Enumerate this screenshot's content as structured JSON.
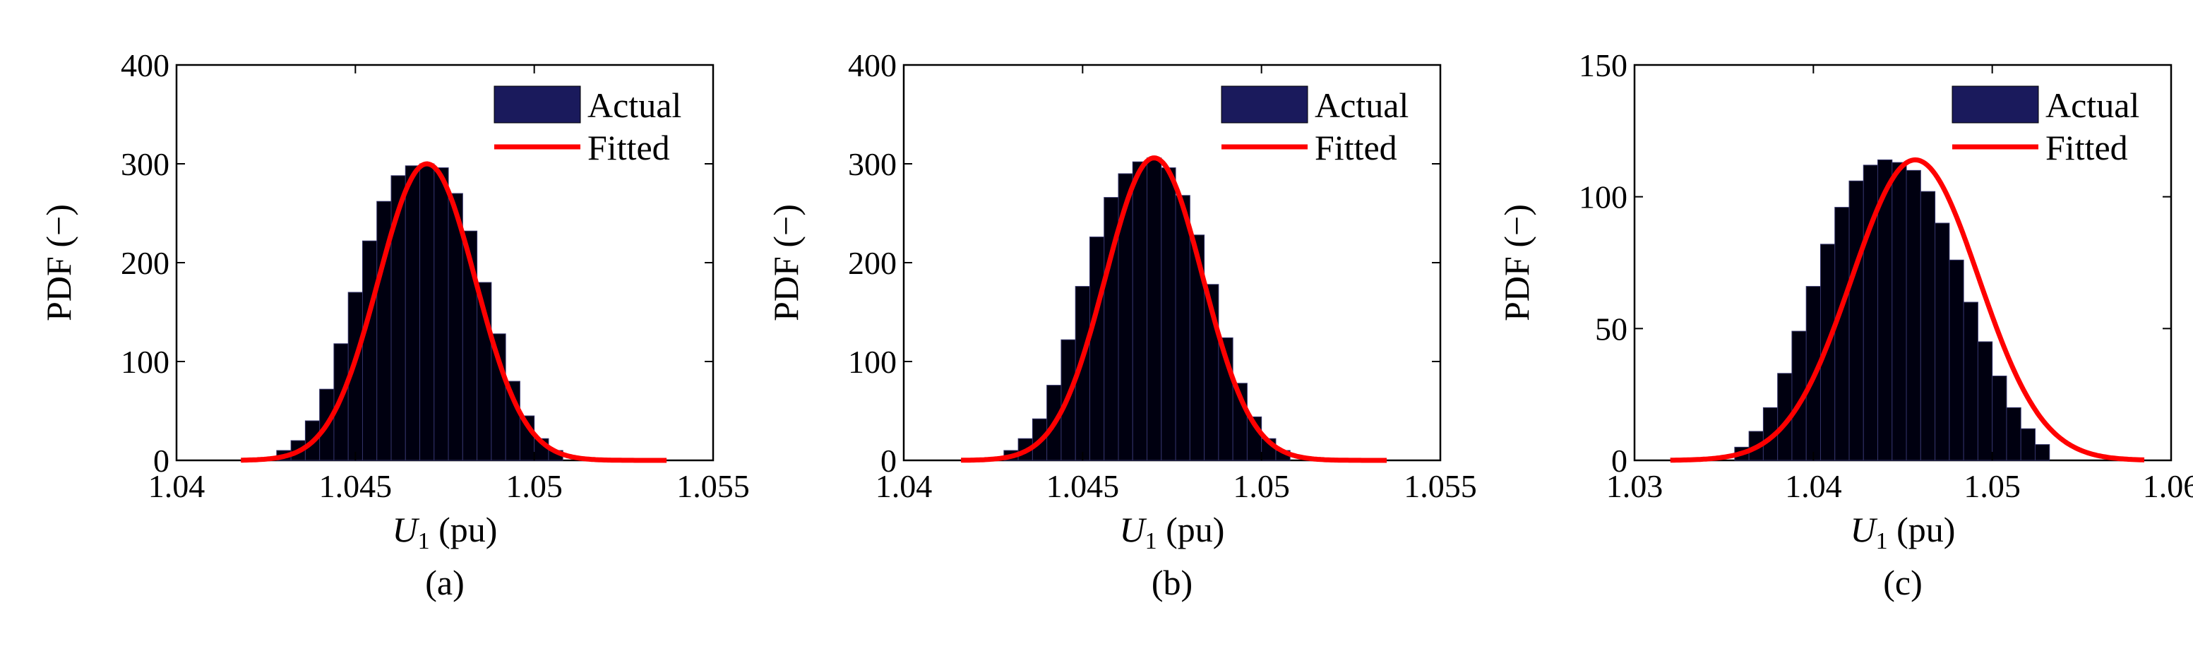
{
  "chart_data": [
    {
      "panel_label": "(a)",
      "type": "bar",
      "xlabel_main": "U",
      "xlabel_sub": "1",
      "xlabel_unit": " (pu)",
      "ylabel": "PDF (−)",
      "xlim": [
        1.04,
        1.055
      ],
      "ylim": [
        0,
        400
      ],
      "xticks": [
        1.04,
        1.045,
        1.05,
        1.055
      ],
      "xtick_labels": [
        "1.04",
        "1.045",
        "1.05",
        "1.055"
      ],
      "yticks": [
        0,
        100,
        200,
        300,
        400
      ],
      "ytick_labels": [
        "0",
        "100",
        "200",
        "300",
        "400"
      ],
      "legend_position": "top-right",
      "series": [
        {
          "name": "Actual",
          "kind": "histogram",
          "color": "#1a1a5c",
          "bins": [
            [
              1.043,
              10
            ],
            [
              1.0434,
              20
            ],
            [
              1.0438,
              40
            ],
            [
              1.0442,
              72
            ],
            [
              1.0446,
              118
            ],
            [
              1.045,
              170
            ],
            [
              1.0454,
              222
            ],
            [
              1.0458,
              262
            ],
            [
              1.0462,
              288
            ],
            [
              1.0466,
              298
            ],
            [
              1.047,
              300
            ],
            [
              1.0474,
              296
            ],
            [
              1.0478,
              270
            ],
            [
              1.0482,
              232
            ],
            [
              1.0486,
              180
            ],
            [
              1.049,
              128
            ],
            [
              1.0494,
              80
            ],
            [
              1.0498,
              45
            ],
            [
              1.0502,
              22
            ],
            [
              1.0506,
              10
            ]
          ]
        },
        {
          "name": "Fitted",
          "kind": "normal",
          "color": "#ff0000",
          "mu": 1.047,
          "sigma": 0.00136,
          "x_range": [
            1.0418,
            1.0537
          ]
        }
      ]
    },
    {
      "panel_label": "(b)",
      "type": "bar",
      "xlabel_main": "U",
      "xlabel_sub": "1",
      "xlabel_unit": " (pu)",
      "ylabel": "PDF (−)",
      "xlim": [
        1.04,
        1.055
      ],
      "ylim": [
        0,
        400
      ],
      "xticks": [
        1.04,
        1.045,
        1.05,
        1.055
      ],
      "xtick_labels": [
        "1.04",
        "1.045",
        "1.05",
        "1.055"
      ],
      "yticks": [
        0,
        100,
        200,
        300,
        400
      ],
      "ytick_labels": [
        "0",
        "100",
        "200",
        "300",
        "400"
      ],
      "legend_position": "top-right",
      "series": [
        {
          "name": "Actual",
          "kind": "histogram",
          "color": "#1a1a5c",
          "bins": [
            [
              1.043,
              10
            ],
            [
              1.0434,
              22
            ],
            [
              1.0438,
              42
            ],
            [
              1.0442,
              76
            ],
            [
              1.0446,
              122
            ],
            [
              1.045,
              176
            ],
            [
              1.0454,
              226
            ],
            [
              1.0458,
              266
            ],
            [
              1.0462,
              290
            ],
            [
              1.0466,
              302
            ],
            [
              1.047,
              306
            ],
            [
              1.0474,
              296
            ],
            [
              1.0478,
              268
            ],
            [
              1.0482,
              228
            ],
            [
              1.0486,
              178
            ],
            [
              1.049,
              124
            ],
            [
              1.0494,
              78
            ],
            [
              1.0498,
              44
            ],
            [
              1.0502,
              22
            ],
            [
              1.0506,
              10
            ]
          ]
        },
        {
          "name": "Fitted",
          "kind": "normal",
          "color": "#ff0000",
          "mu": 1.047,
          "sigma": 0.00136,
          "x_range": [
            1.0416,
            1.0535
          ]
        }
      ]
    },
    {
      "panel_label": "(c)",
      "type": "bar",
      "xlabel_main": "U",
      "xlabel_sub": "1",
      "xlabel_unit": " (pu)",
      "ylabel": "PDF (−)",
      "xlim": [
        1.03,
        1.06
      ],
      "ylim": [
        0,
        150
      ],
      "xticks": [
        1.03,
        1.04,
        1.05,
        1.06
      ],
      "xtick_labels": [
        "1.03",
        "1.04",
        "1.05",
        "1.06"
      ],
      "yticks": [
        0,
        50,
        100,
        150
      ],
      "ytick_labels": [
        "0",
        "50",
        "100",
        "150"
      ],
      "legend_position": "top-right",
      "series": [
        {
          "name": "Actual",
          "kind": "histogram",
          "color": "#1a1a5c",
          "bins": [
            [
              1.036,
              5
            ],
            [
              1.0368,
              11
            ],
            [
              1.0376,
              20
            ],
            [
              1.0384,
              33
            ],
            [
              1.0392,
              49
            ],
            [
              1.04,
              66
            ],
            [
              1.0408,
              82
            ],
            [
              1.0416,
              96
            ],
            [
              1.0424,
              106
            ],
            [
              1.0432,
              112
            ],
            [
              1.044,
              114
            ],
            [
              1.0448,
              113
            ],
            [
              1.0456,
              110
            ],
            [
              1.0464,
              102
            ],
            [
              1.0472,
              90
            ],
            [
              1.048,
              76
            ],
            [
              1.0488,
              60
            ],
            [
              1.0496,
              45
            ],
            [
              1.0504,
              32
            ],
            [
              1.0512,
              20
            ],
            [
              1.052,
              12
            ],
            [
              1.0528,
              6
            ]
          ]
        },
        {
          "name": "Fitted",
          "kind": "normal",
          "color": "#ff0000",
          "mu": 1.0457,
          "sigma": 0.00355,
          "x_range": [
            1.032,
            1.0585
          ]
        }
      ]
    }
  ]
}
